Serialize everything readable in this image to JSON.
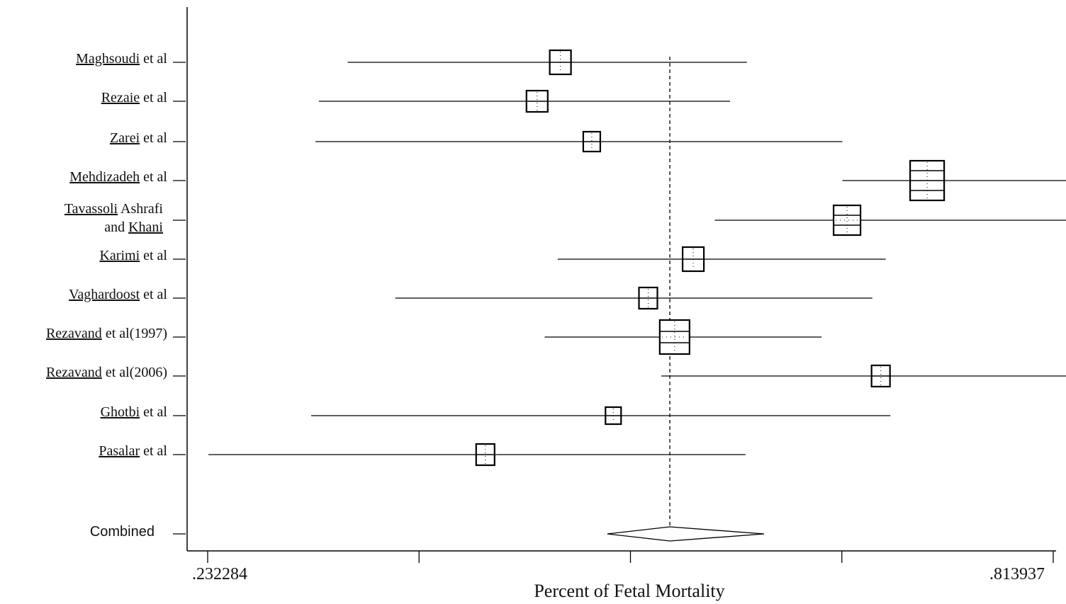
{
  "chart_data": {
    "type": "forest",
    "xlabel": "Percent of Fetal Mortality",
    "xlim": [
      0.232284,
      0.813937
    ],
    "tick_labels": [
      ".232284",
      "",
      "",
      "",
      ".813937"
    ],
    "pooled_estimate": 0.5502,
    "studies": [
      {
        "name_main": "Maghsoudi",
        "name_rest": " et al",
        "name_line2_main": "",
        "name_line2_rest": "",
        "estimate": 0.4749,
        "ci": [
          0.3286,
          0.6032
        ]
      },
      {
        "name_main": "Rezaie",
        "name_rest": " et al",
        "name_line2_main": "",
        "name_line2_rest": "",
        "estimate": 0.4589,
        "ci": [
          0.3088,
          0.5916
        ]
      },
      {
        "name_main": "Zarei",
        "name_rest": " et al",
        "name_line2_main": "",
        "name_line2_rest": "",
        "estimate": 0.4965,
        "ci": [
          0.3065,
          0.6689
        ]
      },
      {
        "name_main": "Mehdizadeh",
        "name_rest": " et al",
        "name_line2_main": "",
        "name_line2_rest": "",
        "estimate": 0.7272,
        "ci": [
          0.6689,
          0.8778
        ]
      },
      {
        "name_main": "Tavassoli",
        "name_rest": " Ashrafi",
        "name_line2_main": "Khani",
        "name_line2_rest": "and ",
        "estimate": 0.6721,
        "ci": [
          0.5811,
          0.8387
        ]
      },
      {
        "name_main": "Karimi",
        "name_rest": " et al",
        "name_line2_main": "",
        "name_line2_rest": "",
        "estimate": 0.5663,
        "ci": [
          0.4731,
          0.6987
        ]
      },
      {
        "name_main": "Vaghardoost",
        "name_rest": " et al",
        "name_line2_main": "",
        "name_line2_rest": "",
        "estimate": 0.5353,
        "ci": [
          0.3613,
          0.6895
        ]
      },
      {
        "name_main": "Rezavand",
        "name_rest": " et al(1997)",
        "name_line2_main": "",
        "name_line2_rest": "",
        "estimate": 0.5535,
        "ci": [
          0.4641,
          0.6546
        ]
      },
      {
        "name_main": "Rezavand",
        "name_rest": " et al(2006)",
        "name_line2_main": "",
        "name_line2_rest": "",
        "estimate": 0.6953,
        "ci": [
          0.5444,
          0.8512
        ]
      },
      {
        "name_main": "Ghotbi",
        "name_rest": " et al",
        "name_line2_main": "",
        "name_line2_rest": "",
        "estimate": 0.5113,
        "ci": [
          0.3035,
          0.7019
        ]
      },
      {
        "name_main": "Pasalar",
        "name_rest": " et al",
        "name_line2_main": "",
        "name_line2_rest": "",
        "estimate": 0.4233,
        "ci": [
          0.2328,
          0.6023
        ]
      }
    ],
    "combined": {
      "label": "Combined",
      "estimate": 0.5502,
      "ci": [
        0.5072,
        0.615
      ]
    },
    "grid": false,
    "reference_line": "dashed vertical line at pooled estimate"
  }
}
